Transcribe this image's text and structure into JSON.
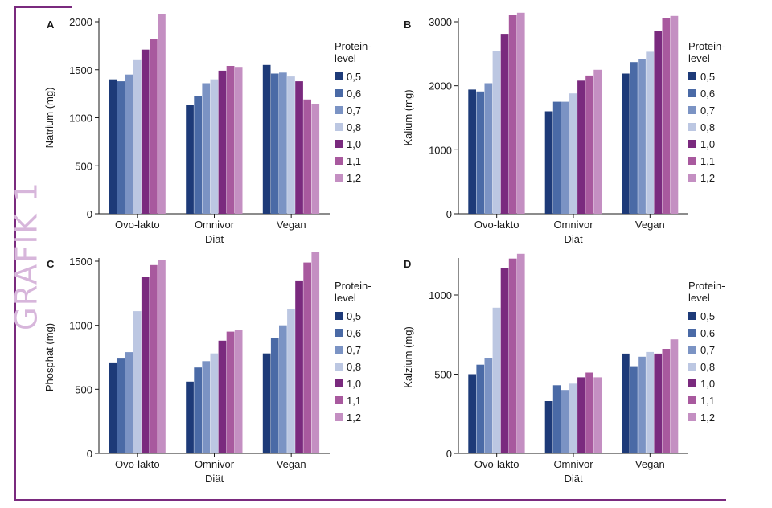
{
  "side_label": "GRAFIK 1",
  "colors": {
    "frame": "#7a2a7e",
    "side_label": "#d7b6db",
    "series": [
      "#1d3a78",
      "#4a6aa6",
      "#7b93c4",
      "#bcc7e2",
      "#7a2a7e",
      "#a8599e",
      "#c48fc2"
    ]
  },
  "chart_data": [
    {
      "type": "bar",
      "panel": "A",
      "ylabel": "Natrium (mg)",
      "xlabel": "Diät",
      "categories": [
        "Ovo-lakto",
        "Omnivor",
        "Vegan"
      ],
      "ylim": [
        0,
        2000
      ],
      "yticks": [
        0,
        500,
        1000,
        1500,
        2000
      ],
      "legend_title": [
        "Protein-",
        "level"
      ],
      "legend_position": "right",
      "series": [
        {
          "name": "0,5",
          "values": [
            1400,
            1130,
            1550
          ]
        },
        {
          "name": "0,6",
          "values": [
            1380,
            1230,
            1460
          ]
        },
        {
          "name": "0,7",
          "values": [
            1450,
            1360,
            1470
          ]
        },
        {
          "name": "0,8",
          "values": [
            1600,
            1400,
            1430
          ]
        },
        {
          "name": "1,0",
          "values": [
            1710,
            1490,
            1380
          ]
        },
        {
          "name": "1,1",
          "values": [
            1820,
            1540,
            1190
          ]
        },
        {
          "name": "1,2",
          "values": [
            2080,
            1530,
            1140
          ]
        }
      ]
    },
    {
      "type": "bar",
      "panel": "B",
      "ylabel": "Kalium (mg)",
      "xlabel": "Diät",
      "categories": [
        "Ovo-lakto",
        "Omnivor",
        "Vegan"
      ],
      "ylim": [
        0,
        3000
      ],
      "yticks": [
        0,
        1000,
        2000,
        3000
      ],
      "legend_title": [
        "Protein-",
        "level"
      ],
      "legend_position": "right",
      "series": [
        {
          "name": "0,5",
          "values": [
            1940,
            1600,
            2190
          ]
        },
        {
          "name": "0,6",
          "values": [
            1910,
            1750,
            2370
          ]
        },
        {
          "name": "0,7",
          "values": [
            2040,
            1750,
            2410
          ]
        },
        {
          "name": "0,8",
          "values": [
            2540,
            1880,
            2530
          ]
        },
        {
          "name": "1,0",
          "values": [
            2810,
            2080,
            2850
          ]
        },
        {
          "name": "1,1",
          "values": [
            3100,
            2160,
            3050
          ]
        },
        {
          "name": "1,2",
          "values": [
            3140,
            2250,
            3090
          ]
        }
      ]
    },
    {
      "type": "bar",
      "panel": "C",
      "ylabel": "Phosphat (mg)",
      "xlabel": "Diät",
      "categories": [
        "Ovo-lakto",
        "Omnivor",
        "Vegan"
      ],
      "ylim": [
        0,
        1500
      ],
      "yticks": [
        0,
        500,
        1000,
        1500
      ],
      "legend_title": [
        "Protein-",
        "level"
      ],
      "legend_position": "right",
      "series": [
        {
          "name": "0,5",
          "values": [
            710,
            560,
            780
          ]
        },
        {
          "name": "0,6",
          "values": [
            740,
            670,
            900
          ]
        },
        {
          "name": "0,7",
          "values": [
            790,
            720,
            1000
          ]
        },
        {
          "name": "0,8",
          "values": [
            1110,
            780,
            1130
          ]
        },
        {
          "name": "1,0",
          "values": [
            1380,
            880,
            1350
          ]
        },
        {
          "name": "1,1",
          "values": [
            1470,
            950,
            1490
          ]
        },
        {
          "name": "1,2",
          "values": [
            1510,
            960,
            1570
          ]
        }
      ]
    },
    {
      "type": "bar",
      "panel": "D",
      "ylabel": "Kalzium (mg)",
      "xlabel": "Diät",
      "categories": [
        "Ovo-lakto",
        "Omnivor",
        "Vegan"
      ],
      "ylim": [
        0,
        1200
      ],
      "yticks": [
        0,
        500,
        1000
      ],
      "legend_title": [
        "Protein-",
        "level"
      ],
      "legend_position": "right",
      "series": [
        {
          "name": "0,5",
          "values": [
            500,
            330,
            630
          ]
        },
        {
          "name": "0,6",
          "values": [
            560,
            430,
            550
          ]
        },
        {
          "name": "0,7",
          "values": [
            600,
            400,
            610
          ]
        },
        {
          "name": "0,8",
          "values": [
            920,
            440,
            640
          ]
        },
        {
          "name": "1,0",
          "values": [
            1170,
            480,
            630
          ]
        },
        {
          "name": "1,1",
          "values": [
            1230,
            510,
            660
          ]
        },
        {
          "name": "1,2",
          "values": [
            1260,
            480,
            720
          ]
        }
      ]
    }
  ]
}
